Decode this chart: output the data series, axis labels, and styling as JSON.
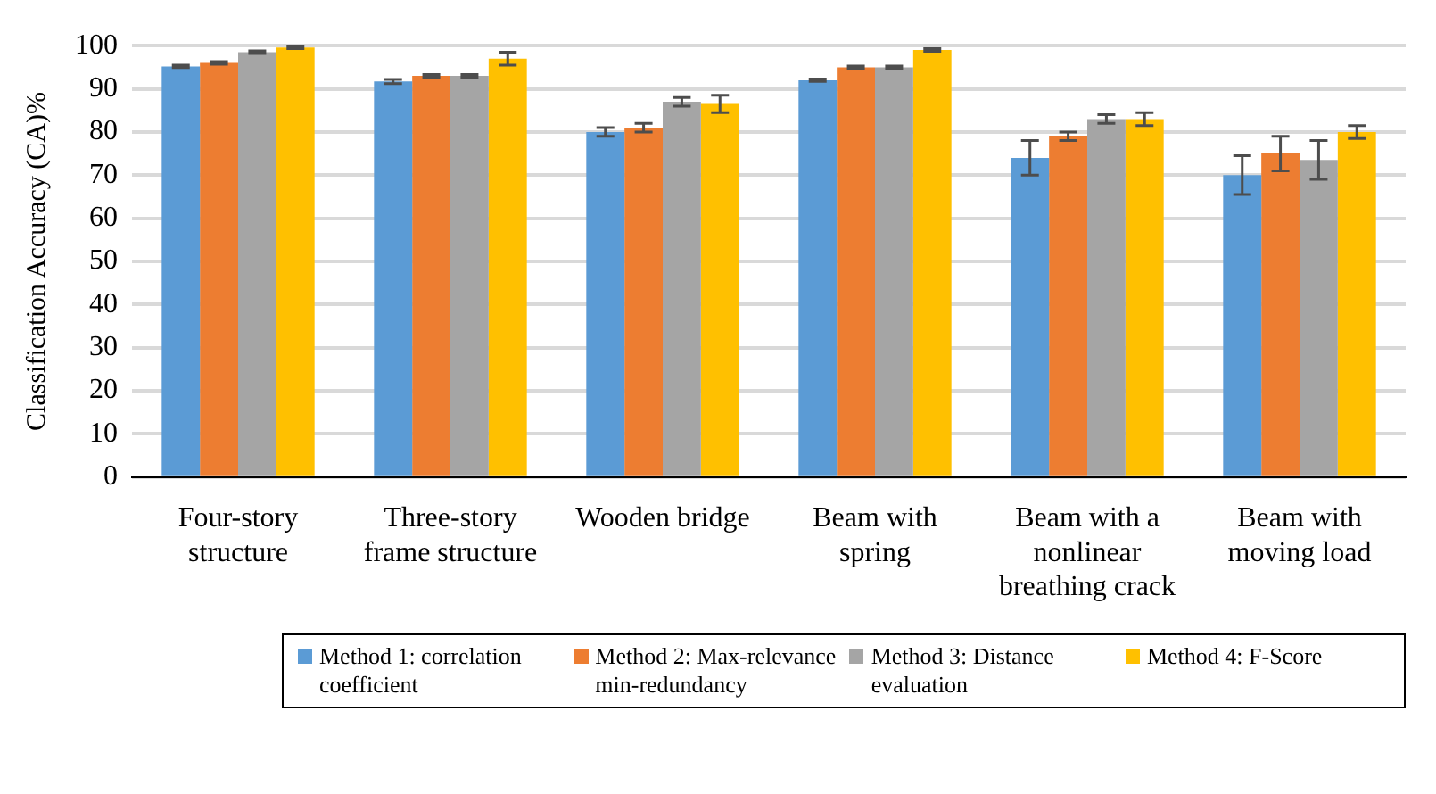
{
  "chart_data": {
    "type": "bar",
    "ylabel": "Classification Accuracy (CA)%",
    "categories": [
      "Four-story structure",
      "Three-story frame structure",
      "Wooden bridge",
      "Beam with spring",
      "Beam with a nonlinear breathing crack",
      "Beam with moving load"
    ],
    "series": [
      {
        "name": "Method 1: correlation coefficient",
        "color": "#5b9bd5",
        "values": [
          95.2,
          91.7,
          80,
          92,
          74,
          70
        ],
        "errors": [
          0.3,
          0.5,
          1,
          0.3,
          4,
          4.5
        ]
      },
      {
        "name": "Method 2: Max-relevance min-redundancy",
        "color": "#ed7d31",
        "values": [
          96,
          93,
          81,
          95,
          79,
          75
        ],
        "errors": [
          0.3,
          0.3,
          1,
          0.3,
          1,
          4
        ]
      },
      {
        "name": "Method 3: Distance evaluation",
        "color": "#a5a5a5",
        "values": [
          98.5,
          93,
          87,
          95,
          83,
          73.5
        ],
        "errors": [
          0.3,
          0.3,
          1,
          0.3,
          1,
          4.5
        ]
      },
      {
        "name": "Method 4: F-Score",
        "color": "#ffc000",
        "values": [
          99.6,
          97,
          86.5,
          99,
          83,
          80
        ],
        "errors": [
          0.3,
          1.5,
          2,
          0.3,
          1.5,
          1.5
        ]
      }
    ],
    "ylim": [
      0,
      100
    ],
    "yticks": [
      0,
      10,
      20,
      30,
      40,
      50,
      60,
      70,
      80,
      90,
      100
    ],
    "grid": "y",
    "legend": "bottom"
  }
}
